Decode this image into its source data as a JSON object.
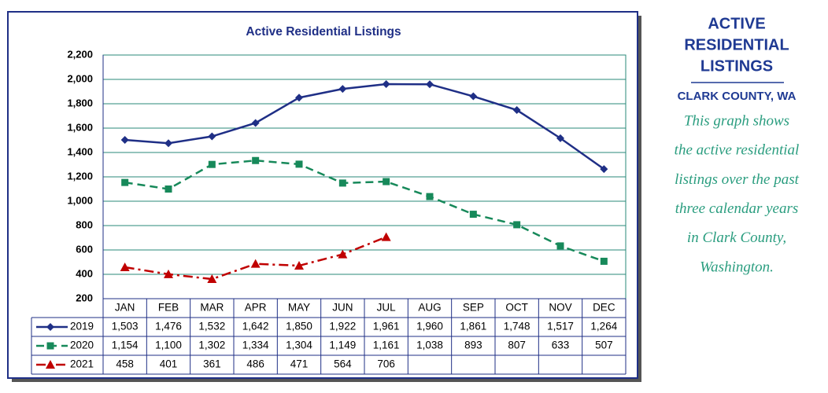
{
  "chart_data": {
    "type": "line",
    "title": "Active Residential Listings",
    "categories": [
      "JAN",
      "FEB",
      "MAR",
      "APR",
      "MAY",
      "JUN",
      "JUL",
      "AUG",
      "SEP",
      "OCT",
      "NOV",
      "DEC"
    ],
    "series": [
      {
        "name": "2019",
        "color": "#1f2f86",
        "line_style": "solid",
        "marker": "diamond",
        "values": [
          1503,
          1476,
          1532,
          1642,
          1850,
          1922,
          1961,
          1960,
          1861,
          1748,
          1517,
          1264
        ],
        "value_labels": [
          "1,503",
          "1,476",
          "1,532",
          "1,642",
          "1,850",
          "1,922",
          "1,961",
          "1,960",
          "1,861",
          "1,748",
          "1,517",
          "1,264"
        ]
      },
      {
        "name": "2020",
        "color": "#17895a",
        "line_style": "dashed",
        "marker": "square",
        "values": [
          1154,
          1100,
          1302,
          1334,
          1304,
          1149,
          1161,
          1038,
          893,
          807,
          633,
          507
        ],
        "value_labels": [
          "1,154",
          "1,100",
          "1,302",
          "1,334",
          "1,304",
          "1,149",
          "1,161",
          "1,038",
          "893",
          "807",
          "633",
          "507"
        ]
      },
      {
        "name": "2021",
        "color": "#c00000",
        "line_style": "dashdot",
        "marker": "triangle",
        "values": [
          458,
          401,
          361,
          486,
          471,
          564,
          706,
          null,
          null,
          null,
          null,
          null
        ],
        "value_labels": [
          "458",
          "401",
          "361",
          "486",
          "471",
          "564",
          "706",
          null,
          null,
          null,
          null,
          null
        ]
      }
    ],
    "ylim": [
      200,
      2200
    ],
    "yticks": [
      {
        "value": 2200,
        "label": "2,200"
      },
      {
        "value": 2000,
        "label": "2,000"
      },
      {
        "value": 1800,
        "label": "1,800"
      },
      {
        "value": 1600,
        "label": "1,600"
      },
      {
        "value": 1400,
        "label": "1,400"
      },
      {
        "value": 1200,
        "label": "1,200"
      },
      {
        "value": 1000,
        "label": "1,000"
      },
      800,
      600,
      400,
      200
    ],
    "grid": true
  },
  "side_panel": {
    "title_lines": [
      "ACTIVE",
      "RESIDENTIAL",
      "LISTINGS"
    ],
    "subtitle": "CLARK COUNTY, WA",
    "description_lines": [
      "This graph shows",
      "the active residential",
      "listings over the past",
      "three calendar years",
      "in Clark County,",
      "Washington."
    ]
  }
}
